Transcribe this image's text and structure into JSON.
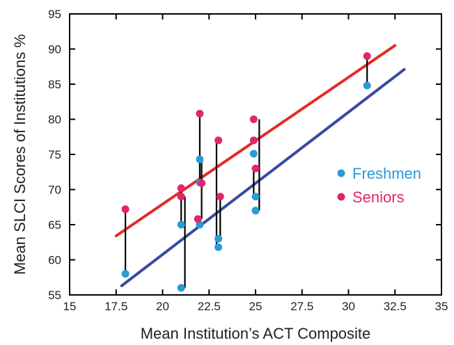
{
  "chart_data": {
    "type": "scatter",
    "xlabel": "Mean Institution’s ACT Composite",
    "ylabel": "Mean SLCI Scores of Institutions %",
    "xlim": [
      15,
      35
    ],
    "ylim": [
      55,
      95
    ],
    "xticks": [
      15,
      17.5,
      20,
      22.5,
      25,
      27.5,
      30,
      32.5,
      35
    ],
    "yticks": [
      55,
      60,
      65,
      70,
      75,
      80,
      85,
      90,
      95
    ],
    "xtick_labels": [
      "15",
      "17.5",
      "20",
      "22.5",
      "25",
      "27.5",
      "30",
      "32.5",
      "35"
    ],
    "ytick_labels": [
      "55",
      "60",
      "65",
      "70",
      "75",
      "80",
      "85",
      "90",
      "95"
    ],
    "grid": false,
    "legend_position": "right",
    "series": [
      {
        "name": "Freshmen",
        "color": "#2b9ad6",
        "points": [
          {
            "x": 18,
            "y": 58
          },
          {
            "x": 21,
            "y": 65
          },
          {
            "x": 21,
            "y": 56
          },
          {
            "x": 22,
            "y": 74.3
          },
          {
            "x": 22,
            "y": 71
          },
          {
            "x": 22,
            "y": 65
          },
          {
            "x": 23,
            "y": 63
          },
          {
            "x": 23,
            "y": 61.8
          },
          {
            "x": 24.9,
            "y": 75.1
          },
          {
            "x": 25,
            "y": 69
          },
          {
            "x": 25,
            "y": 67
          },
          {
            "x": 31,
            "y": 84.8
          }
        ]
      },
      {
        "name": "Seniors",
        "color": "#e0266e",
        "points": [
          {
            "x": 18,
            "y": 67.2
          },
          {
            "x": 21,
            "y": 70.2
          },
          {
            "x": 21,
            "y": 69
          },
          {
            "x": 22,
            "y": 80.8
          },
          {
            "x": 22.1,
            "y": 70.9
          },
          {
            "x": 21.9,
            "y": 65.8
          },
          {
            "x": 23,
            "y": 77
          },
          {
            "x": 23.1,
            "y": 69
          },
          {
            "x": 24.9,
            "y": 80
          },
          {
            "x": 24.9,
            "y": 77
          },
          {
            "x": 25,
            "y": 73
          },
          {
            "x": 31,
            "y": 89
          }
        ]
      }
    ],
    "connectors": [
      {
        "x": 18,
        "y1": 58,
        "y2": 67.2
      },
      {
        "x": 21,
        "y1": 65,
        "y2": 70.2
      },
      {
        "x": 21.2,
        "y1": 56,
        "y2": 69
      },
      {
        "x": 22.1,
        "y1": 74.3,
        "y2": 65.8
      },
      {
        "x": 22,
        "y1": 71,
        "y2": 80.8
      },
      {
        "x": 22.9,
        "y1": 61.8,
        "y2": 77
      },
      {
        "x": 23.1,
        "y1": 63,
        "y2": 69
      },
      {
        "x": 24.9,
        "y1": 69,
        "y2": 73
      },
      {
        "x": 25.2,
        "y1": 67,
        "y2": 80
      },
      {
        "x": 31,
        "y1": 84.8,
        "y2": 89
      }
    ],
    "trendlines": [
      {
        "series": "Seniors",
        "color": "#e42b27",
        "x1": 17.5,
        "y1": 63.4,
        "x2": 32.5,
        "y2": 90.5
      },
      {
        "series": "Freshmen",
        "color": "#3a4a9e",
        "x1": 17.8,
        "y1": 56.3,
        "x2": 33,
        "y2": 87.1
      }
    ]
  }
}
